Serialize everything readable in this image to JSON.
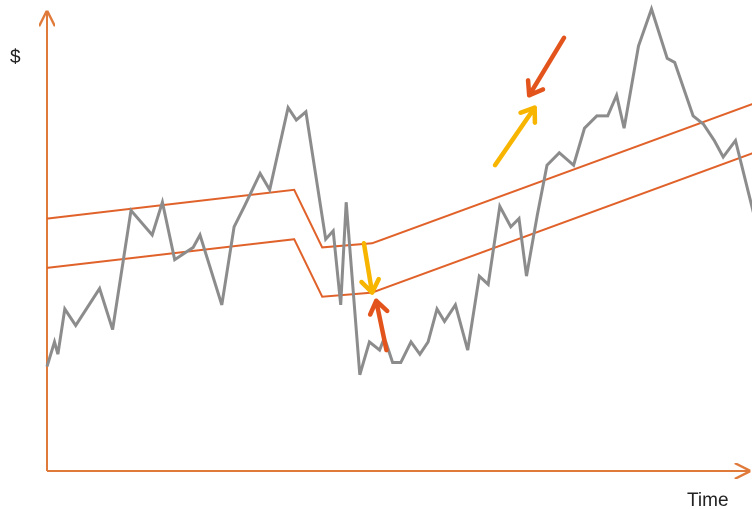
{
  "chart_data": {
    "type": "line",
    "title": "",
    "xlabel": "Time",
    "ylabel": "$",
    "xlim": [
      0,
      100
    ],
    "ylim": [
      0,
      100
    ],
    "grid": false,
    "legend": "none",
    "colors": {
      "axis": "#e07a3a",
      "price": "#8c8c8c",
      "channel": "#e0622a",
      "arrow_yellow": "#f7b500",
      "arrow_red": "#e3541c"
    },
    "series": [
      {
        "role": "price",
        "points": [
          [
            0,
            13
          ],
          [
            1.1,
            19
          ],
          [
            1.6,
            16
          ],
          [
            2.6,
            27
          ],
          [
            4.2,
            23
          ],
          [
            7.7,
            32
          ],
          [
            9.6,
            22
          ],
          [
            12.3,
            51
          ],
          [
            15.4,
            45
          ],
          [
            16.9,
            53
          ],
          [
            18.7,
            39
          ],
          [
            21.4,
            42
          ],
          [
            22.4,
            45
          ],
          [
            25.6,
            28
          ],
          [
            27.4,
            47
          ],
          [
            28.9,
            52
          ],
          [
            31.2,
            60
          ],
          [
            32.6,
            56
          ],
          [
            35.3,
            76
          ],
          [
            36.5,
            73
          ],
          [
            37.9,
            75
          ],
          [
            40.8,
            44
          ],
          [
            41.9,
            46
          ],
          [
            43,
            28
          ],
          [
            43.8,
            53
          ],
          [
            45.8,
            11
          ],
          [
            47.2,
            19
          ],
          [
            48.7,
            17
          ],
          [
            49.4,
            20
          ],
          [
            50.6,
            14
          ],
          [
            51.8,
            14
          ],
          [
            53.3,
            19
          ],
          [
            54.6,
            16
          ],
          [
            55.8,
            19
          ],
          [
            57.1,
            27
          ],
          [
            58.2,
            24
          ],
          [
            59.8,
            28
          ],
          [
            61.6,
            17
          ],
          [
            63.3,
            35
          ],
          [
            64.6,
            33
          ],
          [
            66.3,
            52
          ],
          [
            67.9,
            47
          ],
          [
            69.1,
            49
          ],
          [
            70.2,
            35
          ],
          [
            71.8,
            50
          ],
          [
            73.2,
            62
          ],
          [
            75,
            65
          ],
          [
            77.1,
            62
          ],
          [
            78.7,
            71
          ],
          [
            80.5,
            74
          ],
          [
            82.1,
            74
          ],
          [
            83.4,
            79
          ],
          [
            84.5,
            71
          ],
          [
            86.6,
            91
          ],
          [
            88.5,
            100
          ],
          [
            90.8,
            88
          ],
          [
            91.9,
            87
          ],
          [
            94.6,
            74
          ],
          [
            96.1,
            72
          ],
          [
            97.7,
            68
          ],
          [
            99,
            64
          ],
          [
            100.8,
            68
          ],
          [
            103.5,
            50
          ]
        ]
      },
      {
        "role": "channel-upper",
        "points": [
          [
            0,
            49
          ],
          [
            36.2,
            56
          ],
          [
            40.3,
            42
          ],
          [
            47.6,
            43
          ],
          [
            103.5,
            77
          ]
        ]
      },
      {
        "role": "channel-lower",
        "points": [
          [
            0,
            37
          ],
          [
            36.2,
            44
          ],
          [
            40.3,
            30
          ],
          [
            47.6,
            31
          ],
          [
            103.5,
            65
          ]
        ]
      }
    ],
    "annotations": [
      {
        "type": "arrow",
        "color": "yellow",
        "from": [
          46.4,
          43
        ],
        "to": [
          47.6,
          31
        ]
      },
      {
        "type": "arrow",
        "color": "red",
        "from": [
          49.7,
          17
        ],
        "to": [
          48.2,
          29
        ]
      },
      {
        "type": "arrow",
        "color": "yellow",
        "from": [
          65.6,
          62
        ],
        "to": [
          71.4,
          76
        ]
      },
      {
        "type": "arrow",
        "color": "red",
        "from": [
          75.7,
          93
        ],
        "to": [
          70.6,
          79
        ]
      }
    ]
  }
}
